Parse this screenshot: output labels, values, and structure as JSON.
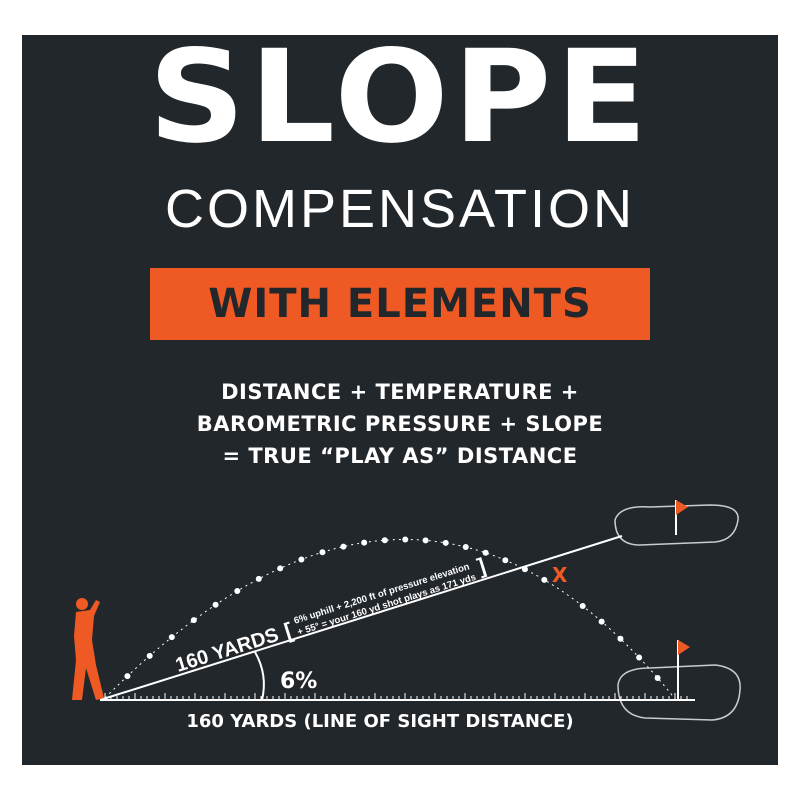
{
  "title": "SLOPE",
  "subtitle": "COMPENSATION",
  "band": "WITH ELEMENTS",
  "formula": [
    "DISTANCE + TEMPERATURE +",
    "BAROMETRIC PRESSURE + SLOPE",
    "= TRUE “PLAY AS” DISTANCE"
  ],
  "diagram": {
    "slope_label": "160 YARDS",
    "note_line1": "6% uphill + 2,200 ft of pressure elevation",
    "note_line2": "+ 55° = your 160 yd shot plays as 171 yds",
    "angle_label": "6%",
    "base_label": "160 YARDS (LINE OF SIGHT DISTANCE)",
    "marker": "X"
  },
  "colors": {
    "background": "#22272c",
    "accent": "#ef5a24",
    "text": "#ffffff"
  }
}
